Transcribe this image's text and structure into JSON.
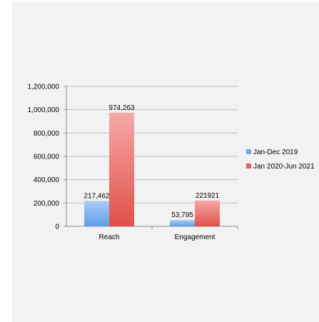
{
  "chart_data": {
    "type": "bar",
    "categories": [
      "Reach",
      "Engagement"
    ],
    "series": [
      {
        "name": "Jan-Dec 2019",
        "values": [
          217462,
          53795
        ],
        "labels": [
          "217,462",
          "53,795"
        ],
        "color": "#6fa8f0"
      },
      {
        "name": "Jan 2020-Jun 2021",
        "values": [
          974263,
          221921
        ],
        "labels": [
          "974,263",
          "221921"
        ],
        "color": "#e8625c"
      }
    ],
    "yticks": [
      {
        "value": 0,
        "label": "0"
      },
      {
        "value": 200000,
        "label": "200,000"
      },
      {
        "value": 400000,
        "label": "400,000"
      },
      {
        "value": 600000,
        "label": "600,000"
      },
      {
        "value": 800000,
        "label": "800,000"
      },
      {
        "value": 1000000,
        "label": "1,000,000"
      },
      {
        "value": 1200000,
        "label": "1,200,000"
      }
    ],
    "ylim": [
      0,
      1200000
    ],
    "grid": true,
    "legend_position": "right",
    "title": "",
    "xlabel": "",
    "ylabel": ""
  }
}
